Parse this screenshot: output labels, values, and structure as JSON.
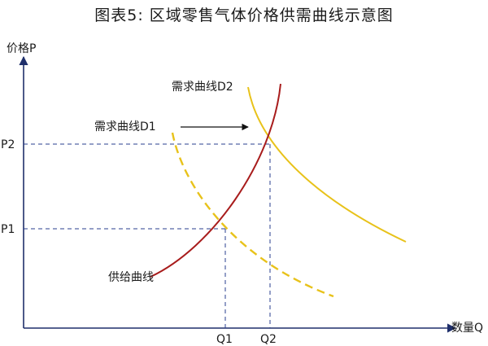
{
  "title": "图表5:  区域零售气体价格供需曲线示意图",
  "axes": {
    "y_label": "价格P",
    "x_label": "数量Q"
  },
  "price_ticks": [
    "P2",
    "P1"
  ],
  "quantity_ticks": [
    "Q1",
    "Q2"
  ],
  "curves": {
    "demand_2": "需求曲线D2",
    "demand_1": "需求曲线D1",
    "supply": "供给曲线"
  },
  "colors": {
    "demand": "#e8c21a",
    "supply": "#a81c1c",
    "guide": "#2a3f8f",
    "axis": "#1f2f6b",
    "arrow": "#111111"
  }
}
